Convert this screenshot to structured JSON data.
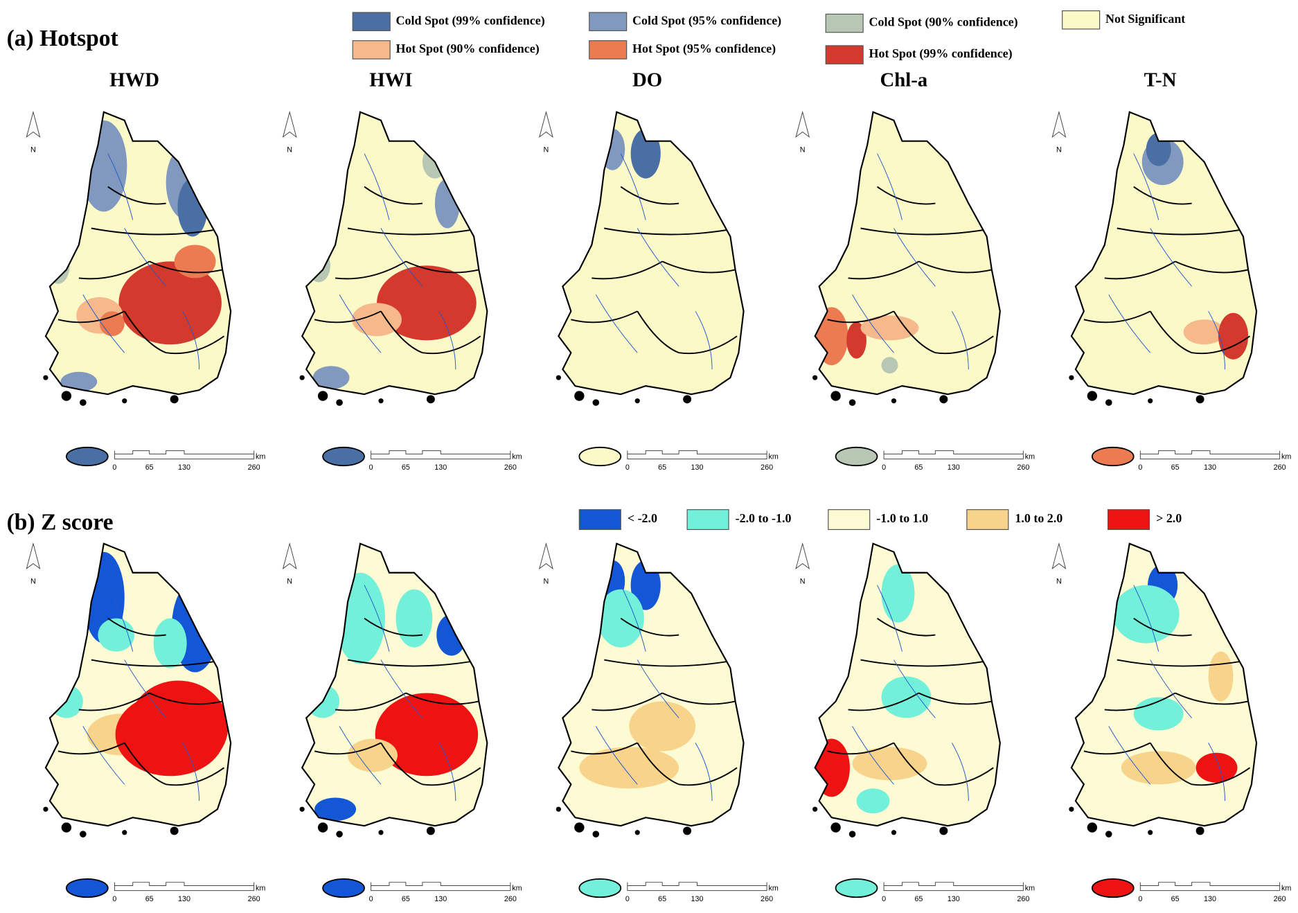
{
  "panels": [
    {
      "label": "(a) Hotspot",
      "legend": [
        {
          "label": "Cold Spot (99% confidence)",
          "color": "#4a6fa5"
        },
        {
          "label": "Cold Spot (95% confidence)",
          "color": "#8199be"
        },
        {
          "label": "Cold Spot (90% confidence)",
          "color": "#b8c6b4"
        },
        {
          "label": "Not Significant",
          "color": "#fcf9c8"
        },
        {
          "label": "Hot Spot (90% confidence)",
          "color": "#f6b98c"
        },
        {
          "label": "Hot Spot (95% confidence)",
          "color": "#ec7b52"
        },
        {
          "label": "Hot Spot (99% confidence)",
          "color": "#d3392c"
        }
      ]
    },
    {
      "label": "(b) Z score",
      "legend": [
        {
          "label": "< -2.0",
          "color": "#1457d6"
        },
        {
          "label": "-2.0 to -1.0",
          "color": "#72f0da"
        },
        {
          "label": "-1.0 to 1.0",
          "color": "#fdfbd3"
        },
        {
          "label": "1.0 to 2.0",
          "color": "#f8d38c"
        },
        {
          "label": "> 2.0",
          "color": "#ee1313"
        }
      ]
    }
  ],
  "map_titles": [
    "HWD",
    "HWI",
    "DO",
    "Chl-a",
    "T-N"
  ],
  "north": "N",
  "scale": {
    "unit": "km",
    "ticks": [
      "0",
      "65",
      "130",
      "260"
    ]
  }
}
